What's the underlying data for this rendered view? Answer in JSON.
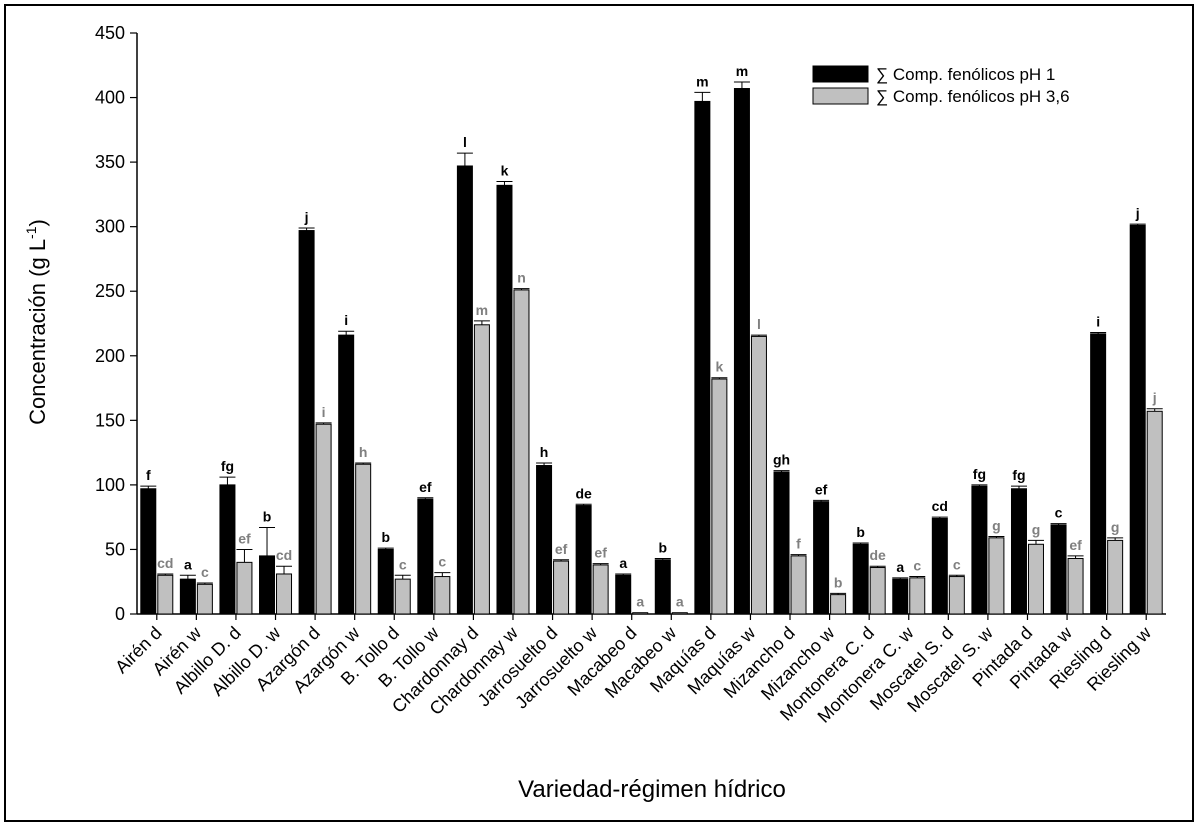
{
  "chart_data": {
    "type": "bar",
    "xlabel": "Variedad-régimen hídrico",
    "ylabel": "Concentración (g L",
    "ylabel_sup": "-1",
    "ylabel_close": ")",
    "ylim": [
      0,
      450
    ],
    "yticks": [
      0,
      50,
      100,
      150,
      200,
      250,
      300,
      350,
      400,
      450
    ],
    "legend_position": "top-right",
    "grid": false,
    "categories": [
      "Airén d",
      "Airén w",
      "Albillo D. d",
      "Albillo D. w",
      "Azargón d",
      "Azargón w",
      "B. Tollo d",
      "B. Tollo w",
      "Chardonnay d",
      "Chardonnay w",
      "Jarrosuelto d",
      "Jarrosuelto w",
      "Macabeo d",
      "Macabeo w",
      "Maquías d",
      "Maquías w",
      "Mizancho d",
      "Mizancho w",
      "Montonera C. d",
      "Montonera C. w",
      "Moscatel S. d",
      "Moscatel S. w",
      "Pintada d",
      "Pintada w",
      "Riesling d",
      "Riesling w"
    ],
    "series": [
      {
        "name": "∑ Comp. fenólicos pH 1",
        "color": "#000000",
        "values": [
          97,
          27,
          100,
          45,
          297,
          216,
          50,
          89,
          347,
          332,
          115,
          84,
          30,
          42,
          397,
          407,
          110,
          87,
          54,
          27,
          74,
          99,
          97,
          69,
          217,
          301
        ],
        "errors": [
          2,
          3,
          6,
          22,
          2,
          3,
          1,
          1,
          10,
          3,
          2,
          1,
          1,
          1,
          7,
          5,
          1,
          1,
          1,
          1,
          1,
          1,
          2,
          1,
          1,
          1
        ],
        "letters": [
          "f",
          "a",
          "fg",
          "b",
          "j",
          "i",
          "b",
          "ef",
          "l",
          "k",
          "h",
          "de",
          "a",
          "b",
          "m",
          "m",
          "gh",
          "ef",
          "b",
          "a",
          "cd",
          "fg",
          "fg",
          "c",
          "i",
          "j"
        ]
      },
      {
        "name": "∑ Comp. fenólicos pH 3,6",
        "color": "#c0c0c0",
        "values": [
          30,
          23,
          40,
          31,
          147,
          116,
          27,
          29,
          224,
          251,
          41,
          38,
          1,
          1,
          182,
          215,
          45,
          15,
          36,
          28,
          29,
          59,
          54,
          43,
          57,
          157
        ],
        "errors": [
          1,
          1,
          10,
          6,
          1,
          1,
          3,
          3,
          3,
          1,
          1,
          1,
          0,
          0,
          1,
          1,
          1,
          1,
          1,
          1,
          1,
          1,
          3,
          2,
          2,
          2
        ],
        "letters": [
          "cd",
          "c",
          "ef",
          "cd",
          "i",
          "h",
          "c",
          "c",
          "m",
          "n",
          "ef",
          "ef",
          "a",
          "a",
          "k",
          "l",
          "f",
          "b",
          "de",
          "c",
          "c",
          "g",
          "g",
          "ef",
          "g",
          "j"
        ]
      }
    ]
  }
}
